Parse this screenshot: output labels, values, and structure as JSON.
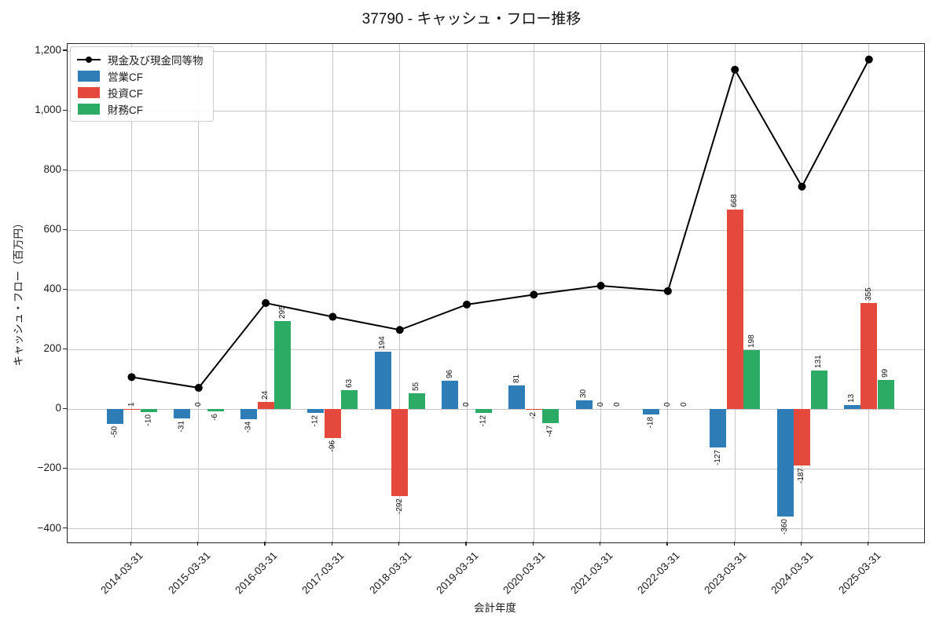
{
  "title": "37790 - キャッシュ・フロー推移",
  "chart_data": {
    "type": "bar",
    "title": "37790 - キャッシュ・フロー推移",
    "xlabel": "会計年度",
    "ylabel": "キャッシュ・フロー（百万円）",
    "categories": [
      "2014-03-31",
      "2015-03-31",
      "2016-03-31",
      "2017-03-31",
      "2018-03-31",
      "2019-03-31",
      "2020-03-31",
      "2021-03-31",
      "2022-03-31",
      "2023-03-31",
      "2024-03-31",
      "2025-03-31"
    ],
    "series": [
      {
        "name": "現金及び現金同等物",
        "key": "cash-and-equivalents",
        "type": "line",
        "color": "#000000",
        "values": [
          108,
          72,
          356,
          310,
          266,
          351,
          384,
          414,
          396,
          1138,
          746,
          1172
        ]
      },
      {
        "name": "営業CF",
        "key": "operating-cf",
        "type": "bar",
        "color": "#2e7db6",
        "values": [
          -50,
          -31,
          -34,
          -12,
          194,
          96,
          81,
          30,
          -18,
          -127,
          -360,
          13
        ]
      },
      {
        "name": "投資CF",
        "key": "investing-cf",
        "type": "bar",
        "color": "#e5493d",
        "values": [
          1,
          0,
          24,
          -96,
          -292,
          0,
          -2,
          0,
          0,
          668,
          -187,
          355
        ]
      },
      {
        "name": "財務CF",
        "key": "financing-cf",
        "type": "bar",
        "color": "#2bab63",
        "values": [
          -10,
          -6,
          295,
          63,
          55,
          -12,
          -47,
          0,
          0,
          198,
          131,
          99
        ]
      }
    ],
    "bar_value_labels": true,
    "yticks": [
      1200,
      1000,
      800,
      600,
      400,
      200,
      0,
      -200,
      -400
    ],
    "ylim": [
      -446,
      1224
    ],
    "grid": true,
    "legend_position": "upper-left",
    "x_tick_rotation": 45
  },
  "colors": {
    "grid": "#c6c6c6",
    "axis_border": "#262626",
    "background": "#ffffff",
    "line_series": "#000000",
    "operating_cf": "#2e7db6",
    "investing_cf": "#e5493d",
    "financing_cf": "#2bab63"
  }
}
